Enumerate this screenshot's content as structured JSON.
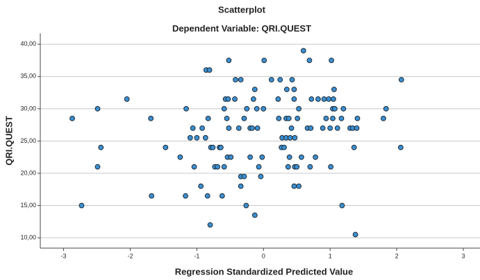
{
  "chart_data": {
    "type": "scatter",
    "title": "Scatterplot",
    "subtitle": "Dependent Variable: QRI.QUEST",
    "x_label": "Regression Standardized Predicted Value",
    "y_label": "QRI.QUEST",
    "color": "#3d8fd0",
    "grid": true,
    "xlim": [
      -3.35,
      3.25
    ],
    "ylim": [
      8.4,
      41.7
    ],
    "xticks": [
      -3,
      -2,
      -1,
      0,
      1,
      2,
      3
    ],
    "yticks": [
      {
        "value": 10,
        "label": "10,00"
      },
      {
        "value": 15,
        "label": "15,00"
      },
      {
        "value": 20,
        "label": "20,00"
      },
      {
        "value": 25,
        "label": "25,00"
      },
      {
        "value": 30,
        "label": "30,00"
      },
      {
        "value": 35,
        "label": "35,00"
      },
      {
        "value": 40,
        "label": "40,00"
      }
    ],
    "x": [
      -2.87,
      -2.73,
      -2.49,
      -2.49,
      -2.44,
      -2.05,
      -1.69,
      -1.68,
      -1.47,
      -1.25,
      -1.17,
      -1.16,
      -1.1,
      -1.06,
      -1.04,
      -1.0,
      -0.94,
      -0.92,
      -0.87,
      -0.86,
      -0.81,
      -0.83,
      -0.84,
      -0.79,
      -0.76,
      -0.73,
      -0.8,
      -0.66,
      -0.64,
      -0.69,
      -0.62,
      -0.59,
      -0.57,
      -0.53,
      -0.55,
      -0.52,
      -0.52,
      -0.54,
      -0.49,
      -0.59,
      -0.42,
      -0.43,
      -0.37,
      -0.34,
      -0.34,
      -0.34,
      -0.29,
      -0.29,
      -0.26,
      -0.25,
      -0.2,
      -0.2,
      -0.17,
      -0.15,
      -0.13,
      -0.13,
      -0.1,
      -0.09,
      -0.07,
      -0.04,
      -0.02,
      0,
      0.01,
      0.12,
      0.22,
      0.23,
      0.25,
      0.27,
      0.28,
      0.31,
      0.34,
      0.34,
      0.35,
      0.37,
      0.38,
      0.39,
      0.4,
      0.42,
      0.43,
      0.46,
      0.46,
      0.47,
      0.46,
      0.47,
      0.5,
      0.51,
      0.53,
      0.53,
      0.57,
      0.6,
      0.66,
      0.69,
      0.7,
      0.71,
      0.72,
      0.78,
      0.82,
      0.89,
      0.91,
      0.94,
      0.98,
      1.0,
      1.01,
      1.02,
      1.04,
      1.04,
      1.05,
      1.06,
      1.07,
      1.11,
      1.17,
      1.18,
      1.2,
      1.3,
      1.34,
      1.36,
      1.38,
      1.4,
      1.41,
      1.8,
      1.84,
      2.07,
      2.06
    ],
    "values": [
      28.5,
      15,
      30,
      21,
      24,
      31.5,
      28.5,
      16.5,
      24,
      22.5,
      16.5,
      30,
      25.5,
      27,
      21,
      25.5,
      18,
      27,
      25.5,
      36,
      36,
      28.5,
      16.5,
      24,
      24,
      21,
      12,
      24,
      24,
      21,
      16.5,
      30,
      31.5,
      31.5,
      28.5,
      37.5,
      27,
      22.5,
      22.5,
      21,
      34.5,
      31.5,
      27,
      34.5,
      19.5,
      18,
      19.5,
      28.5,
      15,
      30,
      22.5,
      27,
      27,
      31.5,
      33,
      13.5,
      30,
      27,
      21,
      19.5,
      22.5,
      30,
      37.5,
      34.5,
      31.5,
      28.5,
      34.5,
      24,
      25.5,
      24,
      25.5,
      28.5,
      33,
      21,
      28.5,
      22.5,
      25.5,
      27,
      34.5,
      33,
      31.5,
      25.5,
      18,
      21,
      21,
      28.5,
      30,
      18,
      22.5,
      39,
      27,
      37.5,
      21,
      27,
      31.5,
      22.5,
      31.5,
      27,
      31.5,
      28.5,
      31.5,
      27,
      21,
      37.5,
      30,
      28.5,
      31.5,
      33,
      30,
      27,
      28.5,
      15,
      30,
      27,
      27,
      24,
      10.5,
      27,
      28.5,
      28.5,
      30,
      34.5,
      24
    ]
  }
}
